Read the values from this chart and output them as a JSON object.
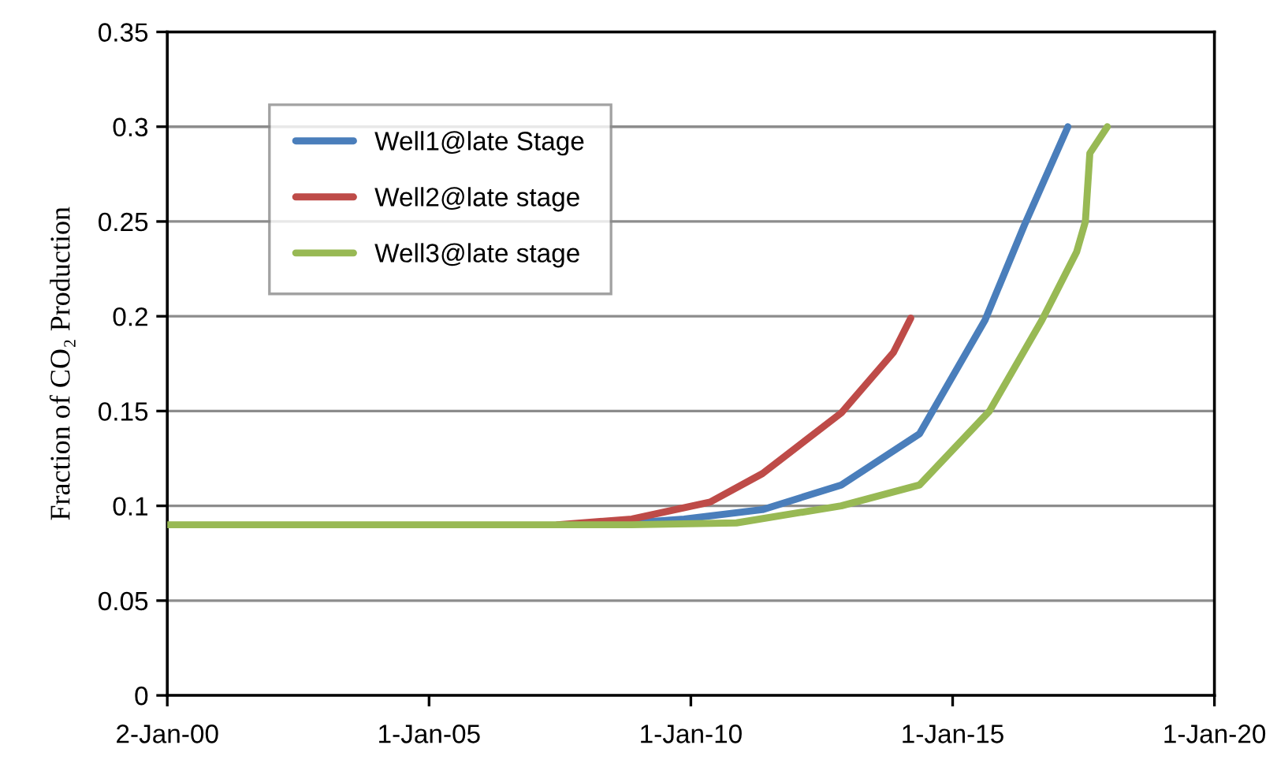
{
  "chart_data": {
    "type": "line",
    "ylabel": "Fraction of CO₂ Production",
    "xlim": [
      "2000-01-02",
      "2020-01-01"
    ],
    "xticks": [
      {
        "value": "2000-01-02",
        "label": "2-Jan-00"
      },
      {
        "value": "2005-01-01",
        "label": "1-Jan-05"
      },
      {
        "value": "2010-01-01",
        "label": "1-Jan-10"
      },
      {
        "value": "2015-01-01",
        "label": "1-Jan-15"
      },
      {
        "value": "2020-01-01",
        "label": "1-Jan-20"
      }
    ],
    "ylim": [
      0,
      0.35
    ],
    "yticks": [
      0,
      0.05,
      0.1,
      0.15,
      0.2,
      0.25,
      0.3,
      0.35
    ],
    "grid": "y",
    "legend": "top left",
    "marker": "none",
    "line_style": "solid",
    "series": [
      {
        "name": "Well1@late Stage",
        "color": "#4a7ebb",
        "x": [
          "2008-11",
          "2009-11",
          "2011-05",
          "2012-11",
          "2014-05",
          "2015-08",
          "2016-05",
          "2017-03"
        ],
        "values": [
          0.091,
          0.093,
          0.098,
          0.111,
          0.138,
          0.198,
          0.248,
          0.3
        ]
      },
      {
        "name": "Well2@late stage",
        "color": "#be4b48",
        "x": [
          "2007-06",
          "2008-11",
          "2010-05",
          "2011-05",
          "2012-11",
          "2013-11",
          "2014-03"
        ],
        "values": [
          0.09,
          0.093,
          0.102,
          0.117,
          0.149,
          0.181,
          0.199
        ]
      },
      {
        "name": "Well3@late stage",
        "color": "#98b954",
        "x": [
          "2000-01-02",
          "2005-01",
          "2008-11",
          "2010-11",
          "2012-11",
          "2014-05",
          "2015-09",
          "2016-09",
          "2017-05",
          "2017-07",
          "2017-08",
          "2017-12"
        ],
        "values": [
          0.09,
          0.09,
          0.09,
          0.091,
          0.1,
          0.111,
          0.15,
          0.198,
          0.234,
          0.25,
          0.286,
          0.3
        ]
      }
    ]
  }
}
